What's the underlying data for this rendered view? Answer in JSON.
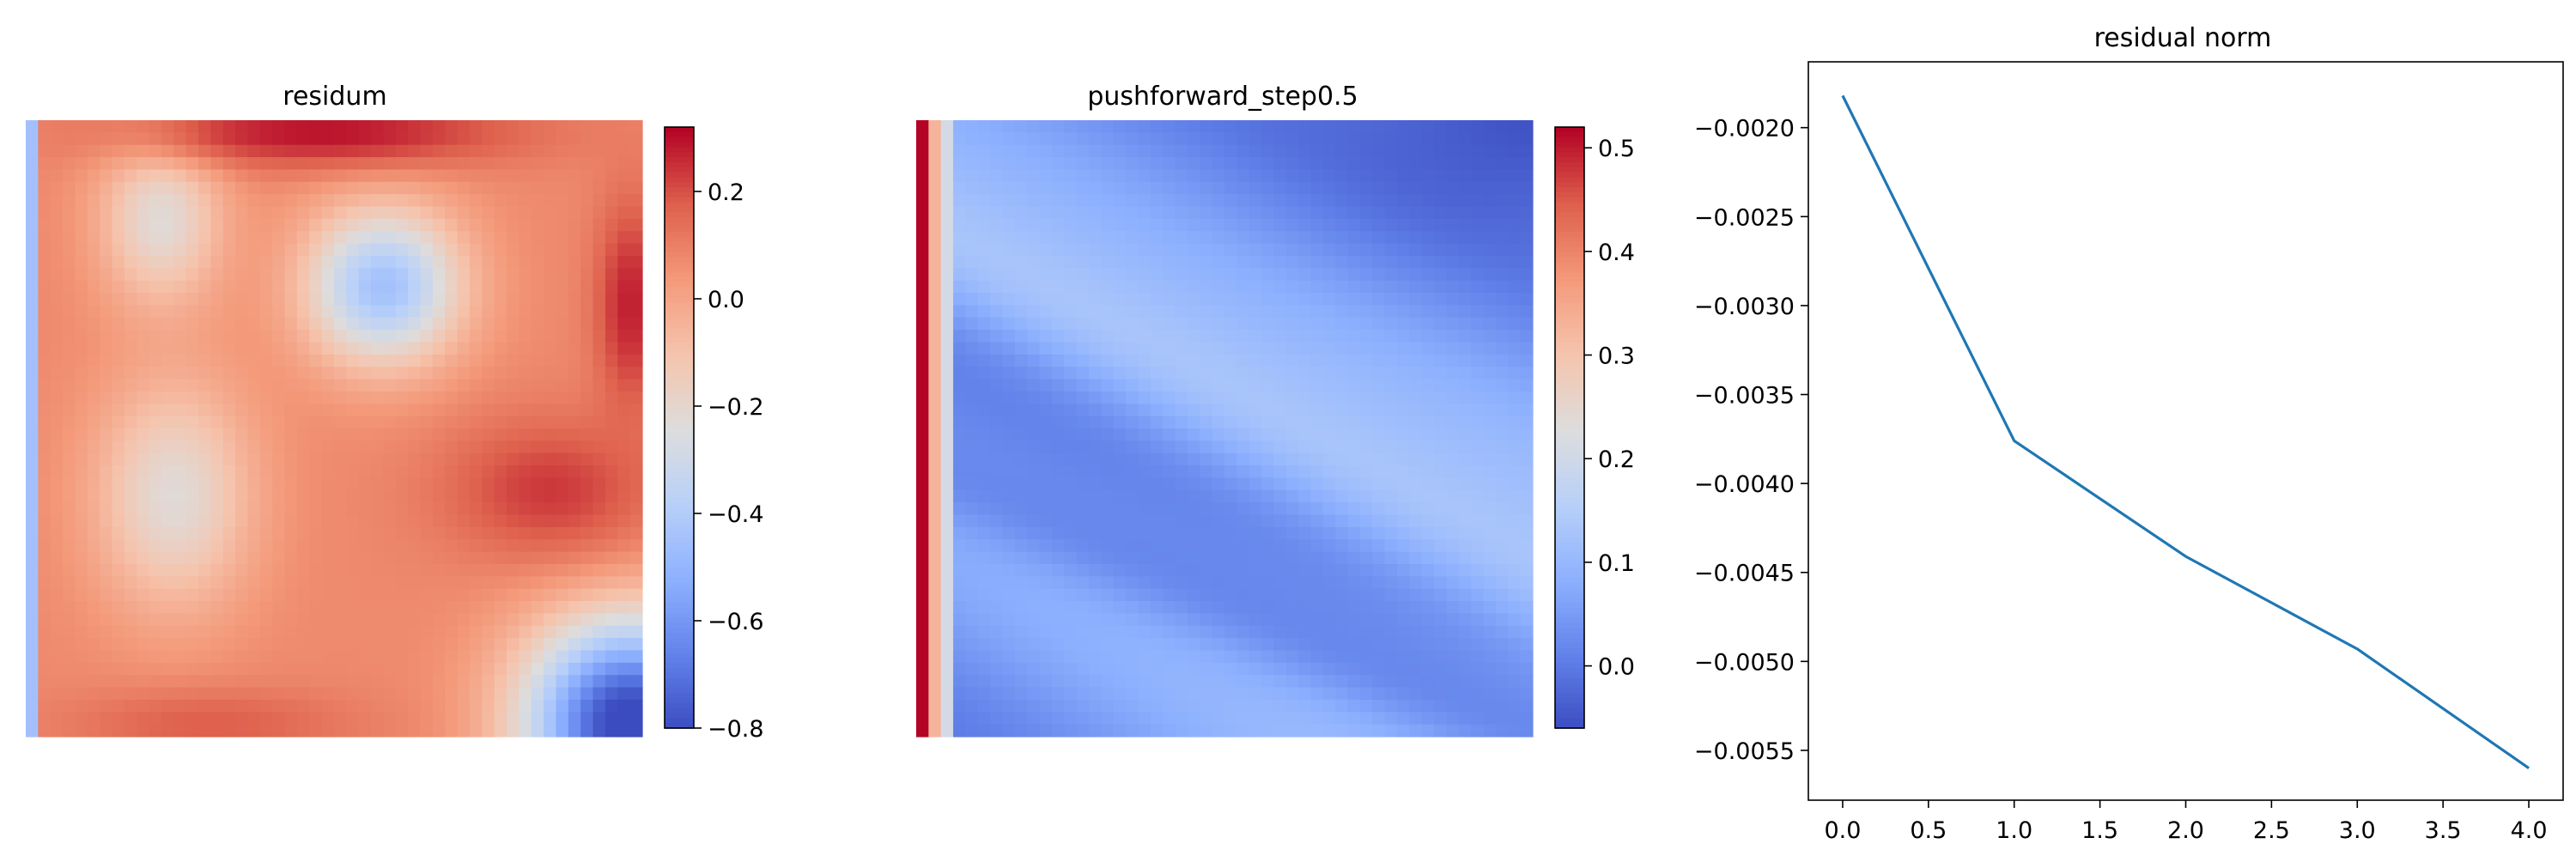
{
  "chart_data": [
    {
      "type": "heatmap",
      "title": "residum",
      "colormap": "coolwarm",
      "colorbar": {
        "min": -0.8,
        "max": 0.32,
        "ticks": [
          0.2,
          0.0,
          -0.2,
          -0.4,
          -0.6,
          -0.8
        ],
        "tick_labels": [
          "0.2",
          "0.0",
          "−0.2",
          "−0.4",
          "−0.6",
          "−0.8"
        ]
      },
      "grid_size": [
        50,
        50
      ],
      "field_features": {
        "left_column_value": -0.45,
        "base_value": 0.08,
        "blobs": [
          {
            "center": [
              0.58,
              0.27
            ],
            "sigma": [
              0.09,
              0.09
            ],
            "value": -0.45,
            "label": "upper-right cool blob"
          },
          {
            "center": [
              0.24,
              0.61
            ],
            "sigma": [
              0.09,
              0.13
            ],
            "value": -0.22,
            "label": "lower-left light region"
          },
          {
            "center": [
              0.22,
              0.16
            ],
            "sigma": [
              0.07,
              0.1
            ],
            "value": -0.22,
            "label": "upper-left light streak"
          },
          {
            "center": [
              0.98,
              0.98
            ],
            "sigma": [
              0.12,
              0.12
            ],
            "value": -0.85,
            "label": "bottom-right cool corner"
          },
          {
            "center": [
              0.48,
              0.02
            ],
            "sigma": [
              0.22,
              0.04
            ],
            "value": 0.3,
            "label": "top warm band"
          },
          {
            "center": [
              0.98,
              0.3
            ],
            "sigma": [
              0.04,
              0.12
            ],
            "value": 0.28,
            "label": "right warm edge"
          },
          {
            "center": [
              0.85,
              0.6
            ],
            "sigma": [
              0.12,
              0.08
            ],
            "value": 0.24,
            "label": "right-middle warm"
          },
          {
            "center": [
              0.3,
              0.98
            ],
            "sigma": [
              0.16,
              0.04
            ],
            "value": 0.18,
            "label": "bottom warm band"
          }
        ]
      }
    },
    {
      "type": "heatmap",
      "title": "pushforward_step0.5",
      "colormap": "coolwarm",
      "colorbar": {
        "min": -0.06,
        "max": 0.52,
        "ticks": [
          0.5,
          0.4,
          0.3,
          0.2,
          0.1,
          0.0
        ],
        "tick_labels": [
          "0.5",
          "0.4",
          "0.3",
          "0.2",
          "0.1",
          "0.0"
        ]
      },
      "grid_size": [
        50,
        50
      ],
      "field_features": {
        "left_columns": [
          0.52,
          0.33,
          0.21
        ],
        "base_value": 0.04,
        "top_right_value": -0.05,
        "diagonal_light_band": 0.13,
        "diagonal_dark_band": 0.0
      }
    },
    {
      "type": "line",
      "title": "residual norm",
      "xlabel": "",
      "ylabel": "",
      "x": [
        0,
        1,
        2,
        3,
        4
      ],
      "series": [
        {
          "values": [
            -0.00182,
            -0.00376,
            -0.00441,
            -0.00493,
            -0.0056
          ],
          "color": "#1f77b4"
        }
      ],
      "xlim": [
        -0.2,
        4.2
      ],
      "ylim": [
        -0.00578,
        -0.00163
      ],
      "xticks": [
        0.0,
        0.5,
        1.0,
        1.5,
        2.0,
        2.5,
        3.0,
        3.5,
        4.0
      ],
      "xtick_labels": [
        "0.0",
        "0.5",
        "1.0",
        "1.5",
        "2.0",
        "2.5",
        "3.0",
        "3.5",
        "4.0"
      ],
      "yticks": [
        -0.002,
        -0.0025,
        -0.003,
        -0.0035,
        -0.004,
        -0.0045,
        -0.005,
        -0.0055
      ],
      "ytick_labels": [
        "−0.0020",
        "−0.0025",
        "−0.0030",
        "−0.0035",
        "−0.0040",
        "−0.0045",
        "−0.0050",
        "−0.0055"
      ],
      "grid": false
    }
  ]
}
